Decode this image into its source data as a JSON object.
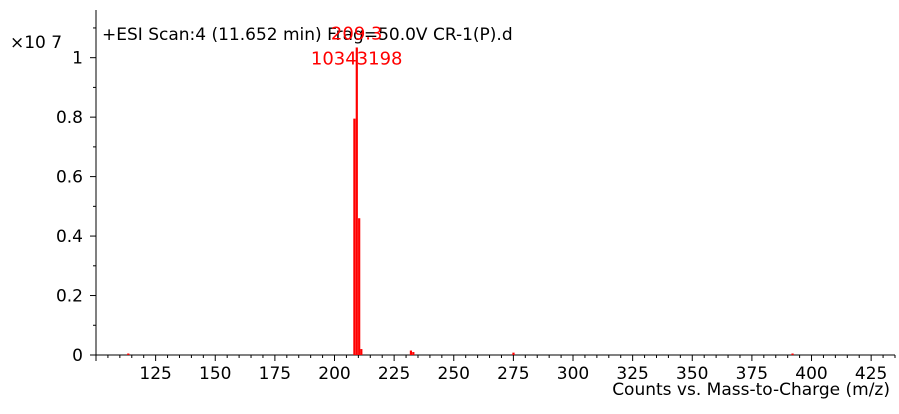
{
  "chart_data": {
    "type": "bar",
    "title": "+ESI Scan:4 (11.652 min) Frag=50.0V CR-1(P).d",
    "xlabel": "Counts vs. Mass-to-Charge (m/z)",
    "ylabel": "",
    "y_multiplier_label": "×10 7",
    "xlim": [
      100,
      435
    ],
    "ylim": [
      0,
      1.12
    ],
    "x_ticks": [
      125,
      150,
      175,
      200,
      225,
      250,
      275,
      300,
      325,
      350,
      375,
      400,
      425
    ],
    "y_ticks": [
      0,
      0.2,
      0.4,
      0.6,
      0.8,
      1
    ],
    "y_tick_labels": [
      "0",
      "0.2",
      "0.4",
      "0.6",
      "0.8",
      "1"
    ],
    "grid": false,
    "peak_color": "#ff0000",
    "series": [
      {
        "x": [
          113.5,
          208.3,
          209.3,
          210.3,
          211.2,
          232.0,
          233.0,
          275.0,
          392.0
        ],
        "values": [
          0.002,
          0.795,
          1.0343198,
          0.46,
          0.02,
          0.015,
          0.01,
          0.008,
          0.004
        ]
      }
    ],
    "annotations": [
      {
        "x": 209.3,
        "y": 1.0343198,
        "mz_label": "209.3",
        "abundance_label": "10343198"
      }
    ]
  }
}
